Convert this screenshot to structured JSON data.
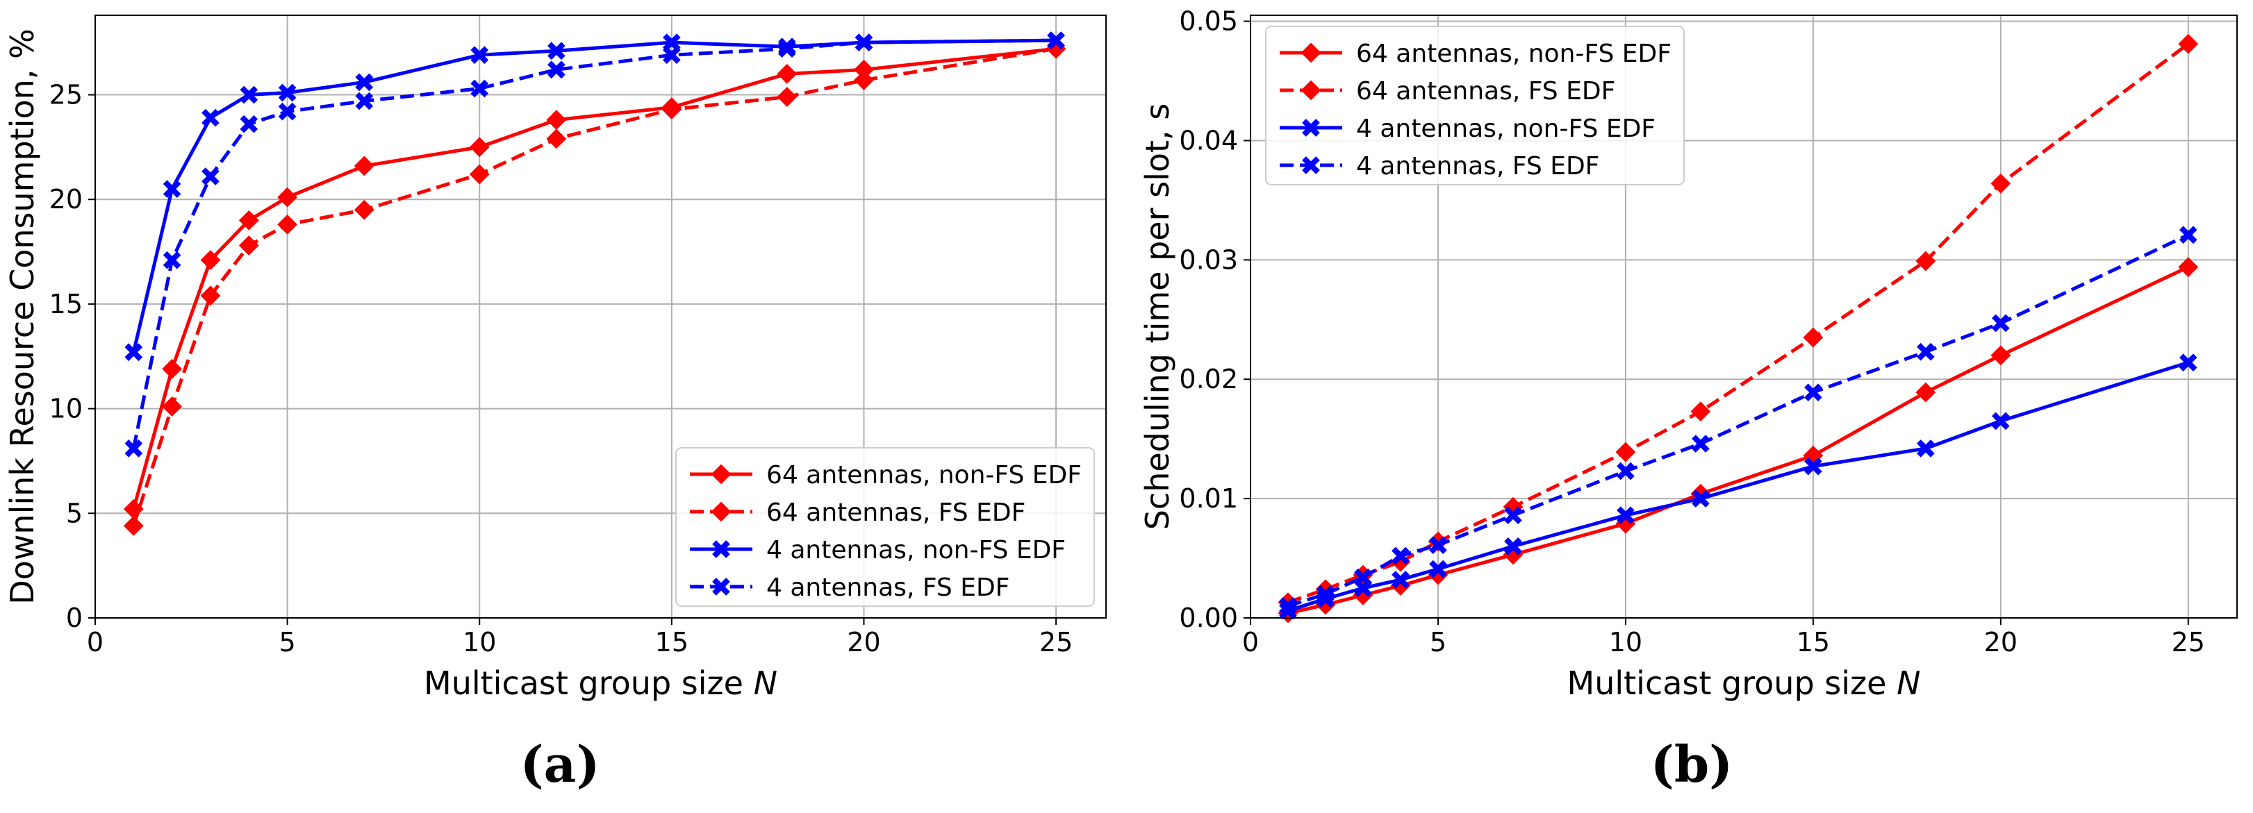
{
  "chart_data": [
    {
      "type": "line",
      "title": "",
      "xlabel": "Multicast group size",
      "xlabel_var": "N",
      "ylabel": "Downlink Resource Consumption, %",
      "xlim": [
        0,
        26.3
      ],
      "ylim": [
        0,
        28.8
      ],
      "xticks": [
        0,
        5,
        10,
        15,
        20,
        25
      ],
      "yticks": [
        0,
        5,
        10,
        15,
        20,
        25
      ],
      "xtick_labels": [
        "0",
        "5",
        "10",
        "15",
        "20",
        "25"
      ],
      "ytick_labels": [
        "0",
        "5",
        "10",
        "15",
        "20",
        "25"
      ],
      "grid": true,
      "legend_position": "bottom-right",
      "x": [
        1,
        2,
        3,
        4,
        5,
        7,
        10,
        12,
        15,
        18,
        20,
        25
      ],
      "series": [
        {
          "name": "64 antennas, non-FS EDF",
          "color": "#ff0000",
          "dash": "solid",
          "marker": "diamond",
          "values": [
            5.2,
            11.9,
            17.1,
            19.0,
            20.1,
            21.6,
            22.5,
            23.8,
            24.4,
            26.0,
            26.2,
            27.2
          ]
        },
        {
          "name": "64 antennas, FS EDF",
          "color": "#ff0000",
          "dash": "dashed",
          "marker": "diamond",
          "values": [
            4.4,
            10.1,
            15.4,
            17.8,
            18.8,
            19.5,
            21.2,
            22.9,
            24.3,
            24.9,
            25.7,
            27.2
          ]
        },
        {
          "name": "4 antennas, non-FS EDF",
          "color": "#0000ff",
          "dash": "solid",
          "marker": "x",
          "values": [
            12.7,
            20.5,
            23.9,
            25.0,
            25.1,
            25.6,
            26.9,
            27.1,
            27.5,
            27.3,
            27.5,
            27.6
          ]
        },
        {
          "name": "4 antennas, FS EDF",
          "color": "#0000ff",
          "dash": "dashed",
          "marker": "x",
          "values": [
            8.1,
            17.1,
            21.1,
            23.6,
            24.2,
            24.7,
            25.3,
            26.2,
            26.9,
            27.2,
            27.5,
            27.6
          ]
        }
      ]
    },
    {
      "type": "line",
      "title": "",
      "xlabel": "Multicast group size",
      "xlabel_var": "N",
      "ylabel": "Scheduling time per slot, s",
      "xlim": [
        0,
        26.3
      ],
      "ylim": [
        0,
        0.0505
      ],
      "xticks": [
        0,
        5,
        10,
        15,
        20,
        25
      ],
      "yticks": [
        0,
        0.01,
        0.02,
        0.03,
        0.04,
        0.05
      ],
      "xtick_labels": [
        "0",
        "5",
        "10",
        "15",
        "20",
        "25"
      ],
      "ytick_labels": [
        "0.00",
        "0.01",
        "0.02",
        "0.03",
        "0.04",
        "0.05"
      ],
      "grid": true,
      "legend_position": "top-left",
      "x": [
        1,
        2,
        3,
        4,
        5,
        7,
        10,
        12,
        15,
        18,
        20,
        25
      ],
      "series": [
        {
          "name": "64 antennas, non-FS EDF",
          "color": "#ff0000",
          "dash": "solid",
          "marker": "diamond",
          "values": [
            0.0004,
            0.0011,
            0.0019,
            0.0027,
            0.0036,
            0.0053,
            0.0079,
            0.0104,
            0.0136,
            0.0189,
            0.022,
            0.0294
          ]
        },
        {
          "name": "64 antennas, FS EDF",
          "color": "#ff0000",
          "dash": "dashed",
          "marker": "diamond",
          "values": [
            0.0013,
            0.0024,
            0.0036,
            0.0047,
            0.0064,
            0.0093,
            0.0139,
            0.0173,
            0.0235,
            0.0299,
            0.0364,
            0.0481
          ]
        },
        {
          "name": "4 antennas, non-FS EDF",
          "color": "#0000ff",
          "dash": "solid",
          "marker": "x",
          "values": [
            0.0006,
            0.0016,
            0.0025,
            0.0032,
            0.0041,
            0.006,
            0.0086,
            0.01,
            0.0127,
            0.0142,
            0.0165,
            0.0214
          ]
        },
        {
          "name": "4 antennas, FS EDF",
          "color": "#0000ff",
          "dash": "dashed",
          "marker": "x",
          "values": [
            0.001,
            0.002,
            0.0034,
            0.0052,
            0.0061,
            0.0086,
            0.0123,
            0.0146,
            0.0189,
            0.0223,
            0.0247,
            0.0321
          ]
        }
      ]
    }
  ],
  "captions": {
    "a": "(a)",
    "b": "(b)"
  }
}
